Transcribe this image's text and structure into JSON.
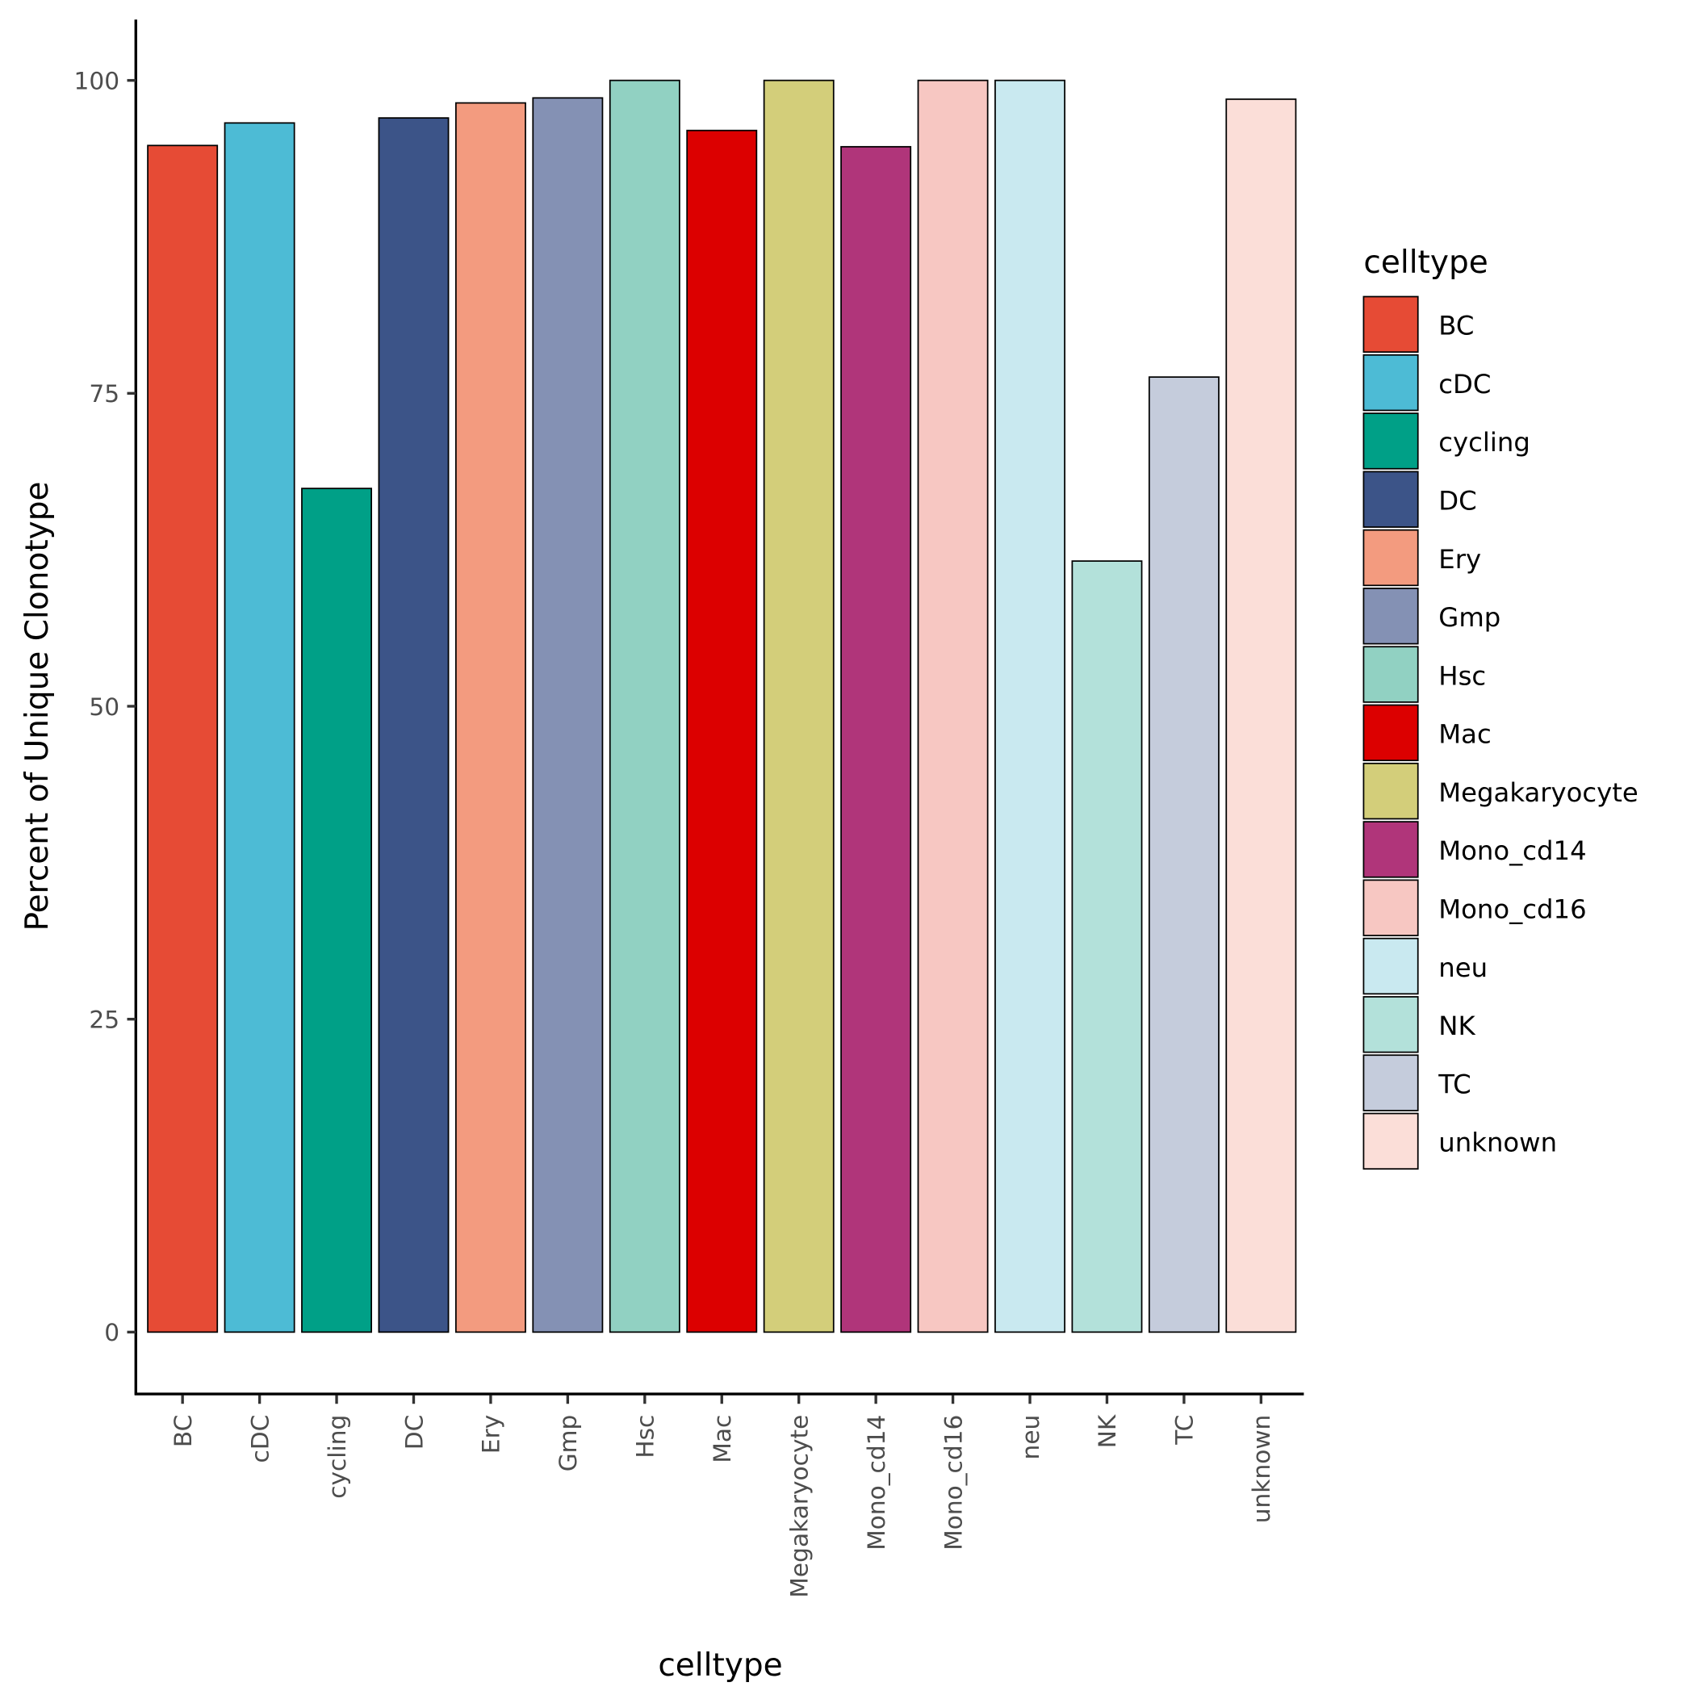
{
  "chart_data": {
    "type": "bar",
    "title": "",
    "xlabel": "celltype",
    "ylabel": "Percent of Unique Clonotype",
    "ylim": [
      -5,
      105
    ],
    "yticks": [
      0,
      25,
      50,
      75,
      100
    ],
    "ytick_labels": [
      "0",
      "25",
      "50",
      "75",
      "100"
    ],
    "grid": false,
    "legend_title": "celltype",
    "legend_position": "right",
    "categories": [
      "BC",
      "cDC",
      "cycling",
      "DC",
      "Ery",
      "Gmp",
      "Hsc",
      "Mac",
      "Megakaryocyte",
      "Mono_cd14",
      "Mono_cd16",
      "neu",
      "NK",
      "TC",
      "unknown"
    ],
    "values": [
      94.8,
      96.6,
      67.4,
      97.0,
      98.2,
      98.6,
      100,
      96.0,
      100,
      94.7,
      100,
      100,
      61.6,
      76.3,
      98.5
    ],
    "colors": [
      "#E64B35",
      "#4DBBD5",
      "#00A087",
      "#3C5488",
      "#F39B7F",
      "#8491B4",
      "#91D1C2",
      "#DC0000",
      "#D3CE7A",
      "#B0357A",
      "#F7C7C2",
      "#C9E9F0",
      "#B3E1DA",
      "#C5CCDC",
      "#FBDED8"
    ]
  }
}
